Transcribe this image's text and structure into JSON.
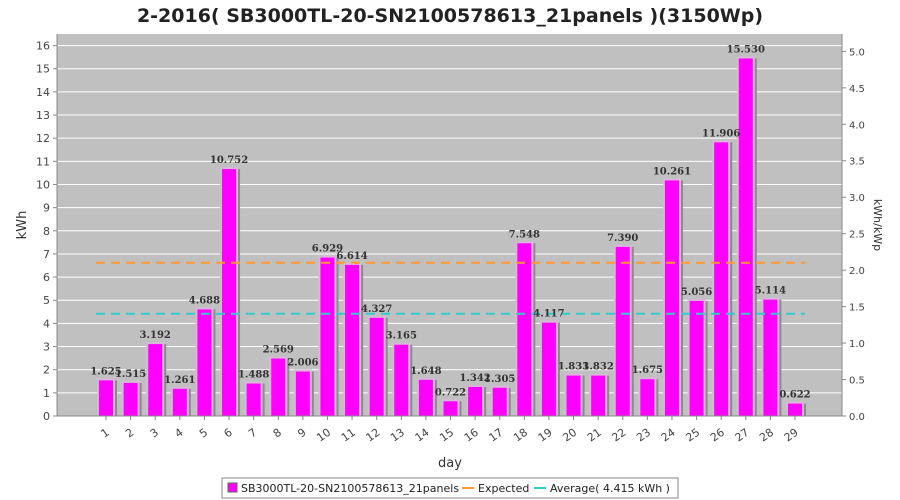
{
  "chart_data": {
    "type": "bar",
    "title": "2-2016( SB3000TL-20-SN2100578613_21panels )(3150Wp)",
    "xlabel": "day",
    "ylabel": "kWh",
    "y2label": "kWh/kWp",
    "categories": [
      "1",
      "2",
      "3",
      "4",
      "5",
      "6",
      "7",
      "8",
      "9",
      "10",
      "11",
      "12",
      "13",
      "14",
      "15",
      "16",
      "17",
      "18",
      "19",
      "20",
      "21",
      "22",
      "23",
      "24",
      "25",
      "26",
      "27",
      "28",
      "29"
    ],
    "series": [
      {
        "name": "SB3000TL-20-SN2100578613_21panels",
        "values": [
          1.625,
          1.515,
          3.192,
          1.261,
          4.688,
          10.752,
          1.488,
          2.569,
          2.006,
          6.929,
          6.614,
          4.327,
          3.165,
          1.648,
          0.722,
          1.342,
          1.305,
          7.548,
          4.117,
          1.833,
          1.832,
          7.39,
          1.675,
          10.261,
          5.056,
          11.906,
          15.53,
          5.114,
          0.622
        ],
        "labels": [
          "1.625",
          "1.515",
          "3.192",
          "1.261",
          "4.688",
          "10.752",
          "1.488",
          "2.569",
          "2.006",
          "6.929",
          "6.614",
          "4.327",
          "3.165",
          "1.648",
          "0.722",
          "1.342",
          "1.305",
          "7.548",
          "4.117",
          "1.833",
          "1.832",
          "7.390",
          "1.675",
          "10.261",
          "5.056",
          "11.906",
          "15.530",
          "5.114",
          "0.622"
        ],
        "color": "#ff00ff"
      }
    ],
    "expected": {
      "name": "Expected",
      "value": 6.62,
      "color": "#ff9933"
    },
    "average": {
      "name": "Average( 4.415 kWh )",
      "value": 4.415,
      "color": "#33cccc"
    },
    "ylim": [
      0,
      16.5
    ],
    "yticks": [
      0,
      1,
      2,
      3,
      4,
      5,
      6,
      7,
      8,
      9,
      10,
      11,
      12,
      13,
      14,
      15,
      16
    ],
    "y2lim": [
      0,
      5.238
    ],
    "y2ticks": [
      "0.0",
      "0.5",
      "1.0",
      "1.5",
      "2.0",
      "2.5",
      "3.0",
      "3.5",
      "4.0",
      "4.5",
      "5.0"
    ],
    "grid": true,
    "legend_position": "bottom",
    "plot_background": "#c0c0c0"
  }
}
